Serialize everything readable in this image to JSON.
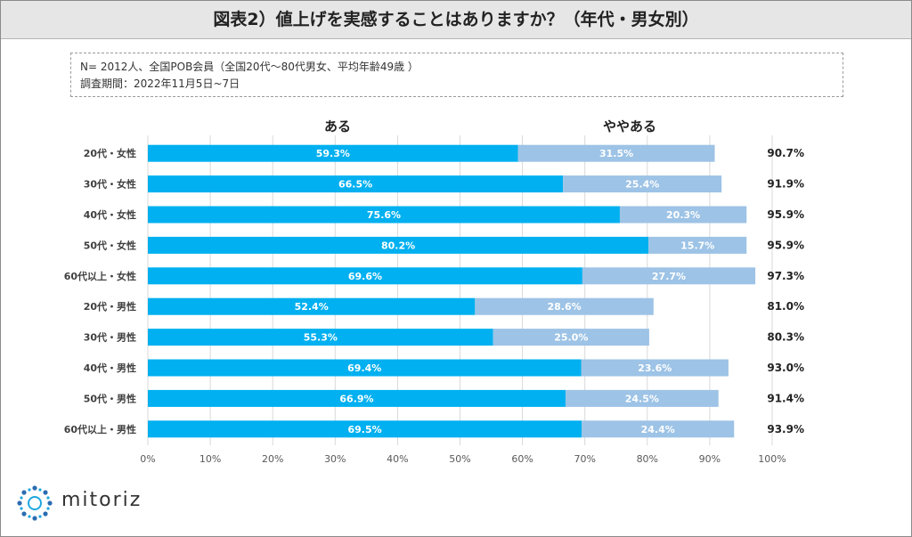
{
  "title": "図表2）値上げを実感することはありますか？（年代・男女別）",
  "note": {
    "line1": "N= 2012人、全国POB会員（全国20代～80代男女、平均年齢49歳 ）",
    "line2": "調査期間：2022年11月5日~7日"
  },
  "logo": {
    "text": "mitoriz"
  },
  "colors": {
    "aru": "#00b0f0",
    "yaya": "#9dc3e6"
  },
  "chart_data": {
    "type": "bar",
    "orientation": "horizontal",
    "stacked": true,
    "categories": [
      "20代・女性",
      "30代・女性",
      "40代・女性",
      "50代・女性",
      "60代以上・女性",
      "20代・男性",
      "30代・男性",
      "40代・男性",
      "50代・男性",
      "60代以上・男性"
    ],
    "series": [
      {
        "name": "ある",
        "values": [
          59.3,
          66.5,
          75.6,
          80.2,
          69.6,
          52.4,
          55.3,
          69.4,
          66.9,
          69.5
        ],
        "labels": [
          "59.3%",
          "66.5%",
          "75.6%",
          "80.2%",
          "69.6%",
          "52.4%",
          "55.3%",
          "69.4%",
          "66.9%",
          "69.5%"
        ]
      },
      {
        "name": "ややある",
        "values": [
          31.5,
          25.4,
          20.3,
          15.7,
          27.7,
          28.6,
          25.0,
          23.6,
          24.5,
          24.4
        ],
        "labels": [
          "31.5%",
          "25.4%",
          "20.3%",
          "15.7%",
          "27.7%",
          "28.6%",
          "25.0%",
          "23.6%",
          "24.5%",
          "24.4%"
        ]
      }
    ],
    "totals": [
      "90.7%",
      "91.9%",
      "95.9%",
      "95.9%",
      "97.3%",
      "81.0%",
      "80.3%",
      "93.0%",
      "91.4%",
      "93.9%"
    ],
    "xlim": [
      0,
      100
    ],
    "xticks": [
      "0%",
      "10%",
      "20%",
      "30%",
      "40%",
      "50%",
      "60%",
      "70%",
      "80%",
      "90%",
      "100%"
    ],
    "grid": true,
    "legend": "top"
  }
}
